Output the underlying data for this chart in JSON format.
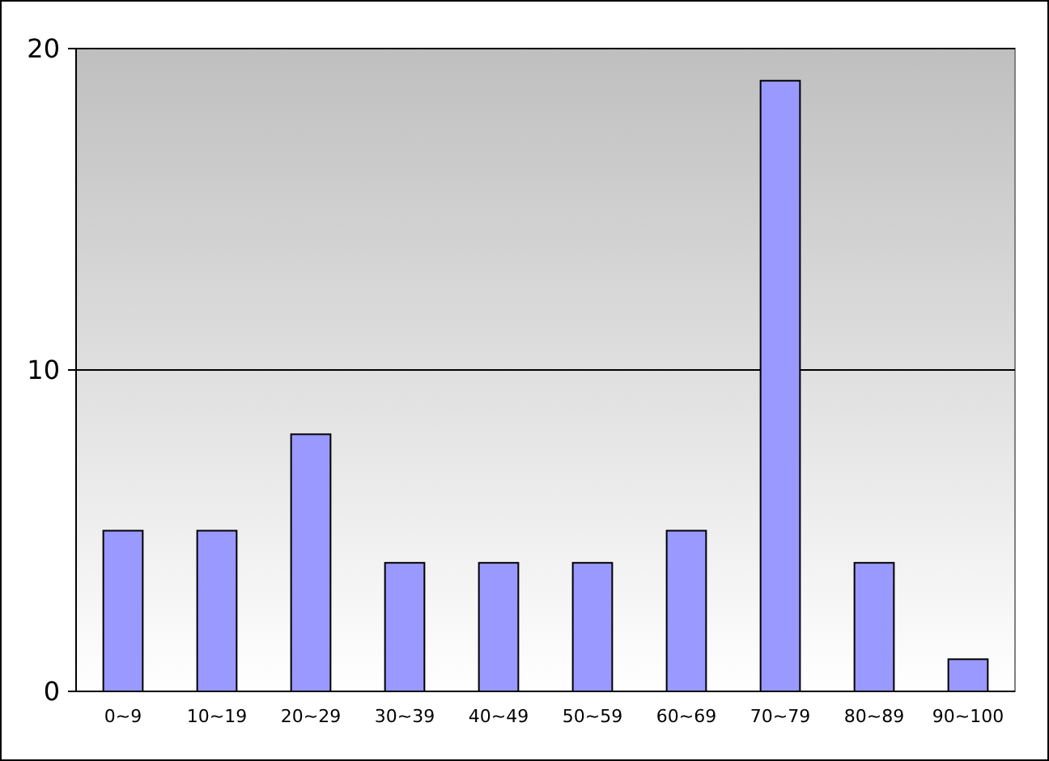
{
  "chart_data": {
    "type": "bar",
    "categories": [
      "0~9",
      "10~19",
      "20~29",
      "30~39",
      "40~49",
      "50~59",
      "60~69",
      "70~79",
      "80~89",
      "90~100"
    ],
    "values": [
      5,
      5,
      8,
      4,
      4,
      4,
      5,
      19,
      4,
      1
    ],
    "color": "#9999ff",
    "ylim": [
      0,
      20
    ],
    "yticks": [
      0,
      10,
      20
    ],
    "grid": "y"
  }
}
